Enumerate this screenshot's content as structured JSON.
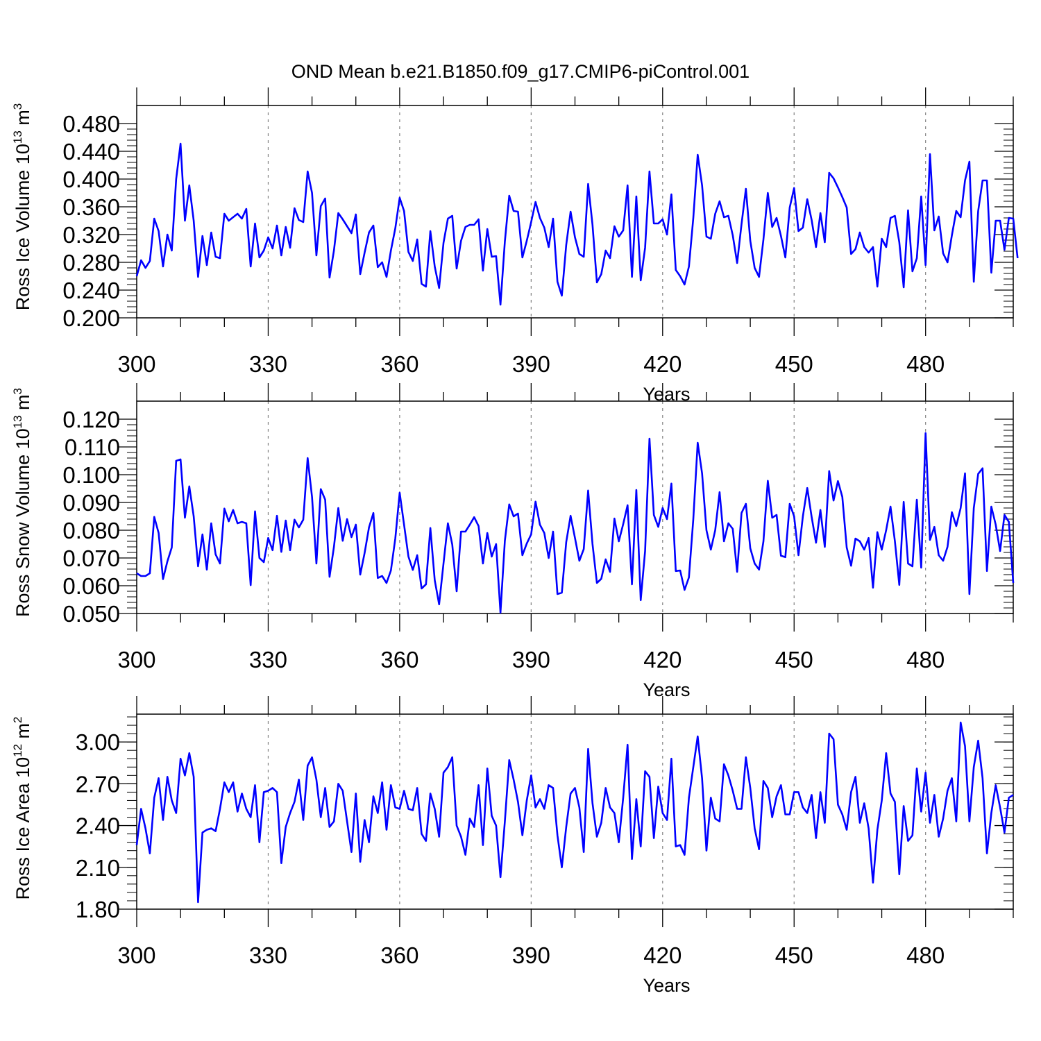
{
  "title": "OND Mean b.e21.B1850.f09_g17.CMIP6-piControl.001",
  "colors": {
    "series": "#0000ff",
    "frame": "#000000",
    "grid": "#808080"
  },
  "chart_data": [
    {
      "type": "line",
      "ylabel": "Ross Ice Volume 10",
      "ylabel_exp": "13",
      "ylabel_unit": " m",
      "ylabel_unit_exp": "3",
      "xlabel": "Years",
      "xlim": [
        300,
        500
      ],
      "ylim": [
        0.2,
        0.48
      ],
      "xticks": [
        300,
        330,
        360,
        390,
        420,
        450,
        480
      ],
      "yticks": [
        0.2,
        0.24,
        0.28,
        0.32,
        0.36,
        0.4,
        0.44,
        0.48
      ],
      "ytick_labels": [
        "0.200",
        "0.240",
        "0.280",
        "0.320",
        "0.360",
        "0.400",
        "0.440",
        "0.480"
      ],
      "ytick_minor": 0.008,
      "grid": "vertical dashed",
      "series": [
        {
          "color": "#0000ff",
          "x_start": 300,
          "values": [
            0.26,
            0.283,
            0.272,
            0.282,
            0.343,
            0.325,
            0.274,
            0.32,
            0.297,
            0.4,
            0.451,
            0.34,
            0.391,
            0.34,
            0.259,
            0.318,
            0.276,
            0.323,
            0.288,
            0.286,
            0.35,
            0.34,
            0.345,
            0.35,
            0.343,
            0.357,
            0.274,
            0.336,
            0.287,
            0.297,
            0.316,
            0.3,
            0.333,
            0.29,
            0.331,
            0.301,
            0.358,
            0.341,
            0.338,
            0.411,
            0.38,
            0.29,
            0.361,
            0.372,
            0.258,
            0.297,
            0.351,
            0.342,
            0.332,
            0.322,
            0.349,
            0.263,
            0.294,
            0.323,
            0.333,
            0.273,
            0.28,
            0.259,
            0.297,
            0.329,
            0.373,
            0.354,
            0.295,
            0.282,
            0.313,
            0.249,
            0.245,
            0.325,
            0.274,
            0.243,
            0.308,
            0.343,
            0.347,
            0.271,
            0.311,
            0.331,
            0.334,
            0.334,
            0.342,
            0.268,
            0.328,
            0.288,
            0.289,
            0.219,
            0.31,
            0.376,
            0.354,
            0.353,
            0.287,
            0.311,
            0.338,
            0.367,
            0.344,
            0.33,
            0.302,
            0.343,
            0.252,
            0.232,
            0.305,
            0.353,
            0.316,
            0.292,
            0.288,
            0.393,
            0.334,
            0.251,
            0.263,
            0.297,
            0.286,
            0.332,
            0.317,
            0.326,
            0.391,
            0.259,
            0.375,
            0.254,
            0.301,
            0.411,
            0.336,
            0.336,
            0.342,
            0.32,
            0.378,
            0.269,
            0.26,
            0.248,
            0.274,
            0.344,
            0.435,
            0.391,
            0.317,
            0.314,
            0.35,
            0.368,
            0.345,
            0.347,
            0.319,
            0.279,
            0.335,
            0.386,
            0.311,
            0.272,
            0.259,
            0.313,
            0.38,
            0.331,
            0.344,
            0.318,
            0.287,
            0.359,
            0.387,
            0.325,
            0.33,
            0.371,
            0.341,
            0.302,
            0.351,
            0.309,
            0.409,
            0.401,
            0.388,
            0.374,
            0.359,
            0.292,
            0.299,
            0.323,
            0.302,
            0.294,
            0.302,
            0.245,
            0.314,
            0.302,
            0.344,
            0.347,
            0.309,
            0.244,
            0.355,
            0.267,
            0.286,
            0.375,
            0.276,
            0.436,
            0.326,
            0.346,
            0.293,
            0.28,
            0.319,
            0.354,
            0.345,
            0.398,
            0.425,
            0.252,
            0.354,
            0.398,
            0.398,
            0.265,
            0.34,
            0.34,
            0.298,
            0.344,
            0.343,
            0.286
          ]
        }
      ]
    },
    {
      "type": "line",
      "ylabel": "Ross Snow Volume 10",
      "ylabel_exp": "13",
      "ylabel_unit": " m",
      "ylabel_unit_exp": "3",
      "xlabel": "Years",
      "xlim": [
        300,
        500
      ],
      "ylim": [
        0.05,
        0.12
      ],
      "xticks": [
        300,
        330,
        360,
        390,
        420,
        450,
        480
      ],
      "yticks": [
        0.05,
        0.06,
        0.07,
        0.08,
        0.09,
        0.1,
        0.11,
        0.12
      ],
      "ytick_labels": [
        "0.050",
        "0.060",
        "0.070",
        "0.080",
        "0.090",
        "0.100",
        "0.110",
        "0.120"
      ],
      "ytick_minor": 0.002,
      "grid": "vertical dashed",
      "series": [
        {
          "color": "#0000ff",
          "x_start": 300,
          "values": [
            0.0645,
            0.0635,
            0.0635,
            0.0645,
            0.0848,
            0.079,
            0.0624,
            0.0688,
            0.0738,
            0.105,
            0.1055,
            0.0845,
            0.0958,
            0.085,
            0.067,
            0.0785,
            0.0658,
            0.0825,
            0.0713,
            0.068,
            0.0878,
            0.0832,
            0.0873,
            0.0825,
            0.083,
            0.0825,
            0.0602,
            0.0868,
            0.07,
            0.0685,
            0.0772,
            0.0728,
            0.0852,
            0.0722,
            0.0835,
            0.0728,
            0.0838,
            0.081,
            0.0838,
            0.106,
            0.092,
            0.068,
            0.0948,
            0.091,
            0.0632,
            0.074,
            0.088,
            0.0762,
            0.084,
            0.0775,
            0.082,
            0.064,
            0.0718,
            0.081,
            0.0862,
            0.0628,
            0.0635,
            0.061,
            0.0655,
            0.077,
            0.0935,
            0.082,
            0.0705,
            0.0657,
            0.071,
            0.059,
            0.0605,
            0.0808,
            0.062,
            0.0533,
            0.068,
            0.0825,
            0.0748,
            0.058,
            0.0795,
            0.0795,
            0.082,
            0.0847,
            0.0815,
            0.068,
            0.079,
            0.0705,
            0.075,
            0.0503,
            0.0762,
            0.0893,
            0.085,
            0.086,
            0.071,
            0.0752,
            0.0785,
            0.0903,
            0.082,
            0.079,
            0.07,
            0.0795,
            0.057,
            0.0575,
            0.0757,
            0.0852,
            0.0772,
            0.069,
            0.0732,
            0.0943,
            0.075,
            0.061,
            0.0625,
            0.0695,
            0.065,
            0.0842,
            0.076,
            0.0822,
            0.089,
            0.0605,
            0.0945,
            0.0548,
            0.0725,
            0.113,
            0.0855,
            0.0812,
            0.088,
            0.084,
            0.0968,
            0.0653,
            0.0655,
            0.0585,
            0.063,
            0.084,
            0.1115,
            0.1005,
            0.08,
            0.073,
            0.08,
            0.0937,
            0.076,
            0.0825,
            0.0805,
            0.065,
            0.0862,
            0.0895,
            0.0735,
            0.068,
            0.0658,
            0.076,
            0.0978,
            0.0845,
            0.0855,
            0.0708,
            0.0703,
            0.0895,
            0.085,
            0.071,
            0.085,
            0.0952,
            0.0848,
            0.0755,
            0.0873,
            0.074,
            0.1013,
            0.0907,
            0.0977,
            0.092,
            0.0738,
            0.0672,
            0.077,
            0.076,
            0.073,
            0.0772,
            0.0593,
            0.0793,
            0.073,
            0.08,
            0.0885,
            0.076,
            0.0603,
            0.0902,
            0.068,
            0.067,
            0.091,
            0.0665,
            0.115,
            0.0765,
            0.0812,
            0.071,
            0.069,
            0.074,
            0.0865,
            0.0815,
            0.088,
            0.1005,
            0.057,
            0.088,
            0.1003,
            0.1023,
            0.0653,
            0.0885,
            0.082,
            0.0725,
            0.0855,
            0.083,
            0.061
          ]
        }
      ]
    },
    {
      "type": "line",
      "ylabel": "Ross Ice Area 10",
      "ylabel_exp": "12",
      "ylabel_unit": " m",
      "ylabel_unit_exp": "2",
      "xlabel": "Years",
      "xlim": [
        300,
        500
      ],
      "ylim": [
        1.8,
        3.2
      ],
      "xticks": [
        300,
        330,
        360,
        390,
        420,
        450,
        480
      ],
      "yticks": [
        1.8,
        2.1,
        2.4,
        2.7,
        3.0
      ],
      "ytick_labels": [
        "1.80",
        "2.10",
        "2.40",
        "2.70",
        "3.00"
      ],
      "ytick_minor": 0.06,
      "grid": "vertical dashed",
      "series": [
        {
          "color": "#0000ff",
          "x_start": 300,
          "values": [
            2.26,
            2.52,
            2.38,
            2.2,
            2.6,
            2.74,
            2.44,
            2.75,
            2.58,
            2.49,
            2.88,
            2.76,
            2.92,
            2.75,
            1.85,
            2.35,
            2.37,
            2.38,
            2.36,
            2.52,
            2.71,
            2.64,
            2.71,
            2.5,
            2.63,
            2.52,
            2.46,
            2.69,
            2.28,
            2.64,
            2.65,
            2.67,
            2.64,
            2.13,
            2.39,
            2.49,
            2.57,
            2.73,
            2.44,
            2.83,
            2.89,
            2.73,
            2.46,
            2.67,
            2.39,
            2.43,
            2.7,
            2.65,
            2.43,
            2.21,
            2.63,
            2.14,
            2.44,
            2.28,
            2.61,
            2.49,
            2.71,
            2.37,
            2.69,
            2.53,
            2.52,
            2.65,
            2.52,
            2.51,
            2.67,
            2.34,
            2.29,
            2.63,
            2.52,
            2.32,
            2.78,
            2.82,
            2.89,
            2.4,
            2.32,
            2.19,
            2.45,
            2.39,
            2.69,
            2.26,
            2.81,
            2.47,
            2.4,
            2.03,
            2.43,
            2.87,
            2.73,
            2.57,
            2.33,
            2.58,
            2.76,
            2.53,
            2.59,
            2.52,
            2.69,
            2.67,
            2.33,
            2.1,
            2.39,
            2.63,
            2.67,
            2.53,
            2.21,
            2.95,
            2.56,
            2.32,
            2.42,
            2.67,
            2.53,
            2.49,
            2.28,
            2.6,
            2.98,
            2.16,
            2.59,
            2.25,
            2.79,
            2.75,
            2.31,
            2.68,
            2.49,
            2.44,
            2.88,
            2.25,
            2.26,
            2.19,
            2.6,
            2.82,
            3.04,
            2.74,
            2.22,
            2.6,
            2.45,
            2.43,
            2.84,
            2.76,
            2.65,
            2.52,
            2.52,
            2.89,
            2.67,
            2.38,
            2.23,
            2.72,
            2.67,
            2.46,
            2.61,
            2.69,
            2.48,
            2.48,
            2.64,
            2.64,
            2.53,
            2.49,
            2.62,
            2.31,
            2.64,
            2.42,
            3.06,
            3.02,
            2.55,
            2.48,
            2.37,
            2.64,
            2.75,
            2.42,
            2.56,
            2.38,
            1.99,
            2.37,
            2.58,
            2.92,
            2.63,
            2.57,
            2.05,
            2.54,
            2.29,
            2.33,
            2.81,
            2.5,
            2.78,
            2.42,
            2.62,
            2.32,
            2.45,
            2.65,
            2.74,
            2.43,
            3.14,
            2.97,
            2.43,
            2.82,
            3.01,
            2.74,
            2.2,
            2.49,
            2.69,
            2.53,
            2.35,
            2.6,
            2.62
          ]
        }
      ]
    }
  ]
}
